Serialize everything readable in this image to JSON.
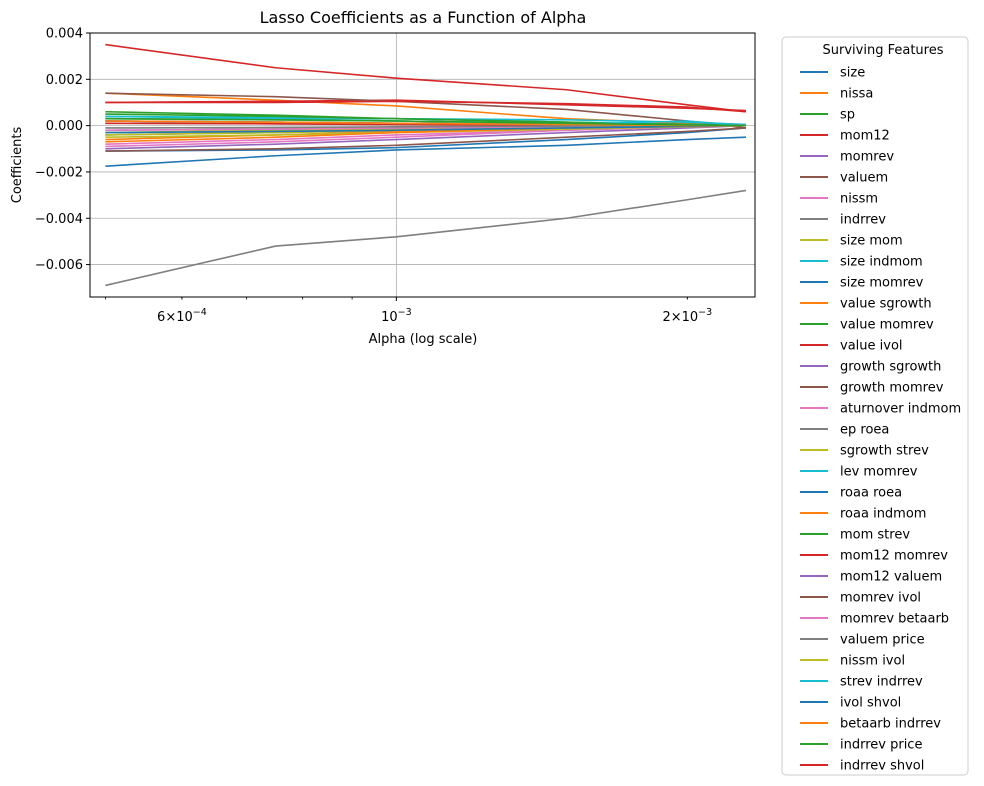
{
  "chart_data": {
    "type": "line",
    "title": "Lasso Coefficients as a Function of Alpha",
    "xlabel": "Alpha (log scale)",
    "ylabel": "Coefficients",
    "xscale": "log",
    "xlim": [
      0.000482,
      0.00235
    ],
    "ylim": [
      -0.0074,
      0.004
    ],
    "x": [
      0.0005,
      0.00075,
      0.001,
      0.0015,
      0.002,
      0.0023
    ],
    "y_ticks": [
      {
        "value": 0.004,
        "label": "0.004"
      },
      {
        "value": 0.002,
        "label": "0.002"
      },
      {
        "value": 0.0,
        "label": "0.000"
      },
      {
        "value": -0.002,
        "label": "−0.002"
      },
      {
        "value": -0.004,
        "label": "−0.004"
      },
      {
        "value": -0.006,
        "label": "−0.006"
      }
    ],
    "x_ticks": [
      {
        "value": 0.0006,
        "base": "6×10",
        "exp": "−4",
        "major": false
      },
      {
        "value": 0.001,
        "base": "10",
        "exp": "−3",
        "major": true
      },
      {
        "value": 0.002,
        "base": "2×10",
        "exp": "−3",
        "major": false
      }
    ],
    "grid": true,
    "legend": {
      "title": "Surviving Features",
      "placement": "outside-right"
    },
    "series": [
      {
        "name": "size",
        "color": "#1f77b4",
        "values": [
          -0.0011,
          -0.00105,
          -0.00095,
          -0.0006,
          -0.0003,
          -0.0001
        ]
      },
      {
        "name": "nissa",
        "color": "#ff7f0e",
        "values": [
          0.0014,
          0.0011,
          0.00085,
          0.0003,
          0.0001,
          0.0
        ]
      },
      {
        "name": "sp",
        "color": "#2ca02c",
        "values": [
          0.0006,
          0.00045,
          0.0003,
          0.00015,
          5e-05,
          0.0
        ]
      },
      {
        "name": "mom12",
        "color": "#d62728",
        "values": [
          0.001,
          0.00105,
          0.0011,
          0.0009,
          0.00075,
          0.00065
        ]
      },
      {
        "name": "momrev",
        "color": "#9467bd",
        "values": [
          -0.001,
          -0.0008,
          -0.0006,
          -0.0003,
          -0.0001,
          0.0
        ]
      },
      {
        "name": "valuem",
        "color": "#8c564b",
        "values": [
          0.0014,
          0.00125,
          0.00105,
          0.0007,
          0.0002,
          -0.0001
        ]
      },
      {
        "name": "nissm",
        "color": "#e377c2",
        "values": [
          -0.0008,
          -0.0006,
          -0.0004,
          -0.0002,
          -5e-05,
          0.0
        ]
      },
      {
        "name": "indrrev",
        "color": "#7f7f7f",
        "values": [
          -0.0069,
          -0.0052,
          -0.0048,
          -0.004,
          -0.0032,
          -0.0028
        ]
      },
      {
        "name": "size mom",
        "color": "#bcbd22",
        "values": [
          -0.0003,
          -0.0002,
          -0.00015,
          -5e-05,
          0.0,
          0.0
        ]
      },
      {
        "name": "size indmom",
        "color": "#17becf",
        "values": [
          0.0004,
          0.00035,
          0.0003,
          0.00025,
          0.00015,
          5e-05
        ]
      },
      {
        "name": "size momrev",
        "color": "#1f77b4",
        "values": [
          -0.00175,
          -0.0013,
          -0.00105,
          -0.00085,
          -0.0006,
          -0.0005
        ]
      },
      {
        "name": "value sgrowth",
        "color": "#ff7f0e",
        "values": [
          -0.0006,
          -0.0004,
          -0.00025,
          -0.0001,
          0.0,
          0.0
        ]
      },
      {
        "name": "value momrev",
        "color": "#2ca02c",
        "values": [
          0.0005,
          0.0004,
          0.0003,
          0.00015,
          5e-05,
          0.0
        ]
      },
      {
        "name": "value ivol",
        "color": "#d62728",
        "values": [
          0.0035,
          0.0025,
          0.00205,
          0.00155,
          0.0009,
          0.0006
        ]
      },
      {
        "name": "growth sgrowth",
        "color": "#9467bd",
        "values": [
          -0.0002,
          -0.00015,
          -0.0001,
          -5e-05,
          0.0,
          0.0
        ]
      },
      {
        "name": "growth momrev",
        "color": "#8c564b",
        "values": [
          -0.0011,
          -0.001,
          -0.00085,
          -0.0005,
          -0.00025,
          -0.0001
        ]
      },
      {
        "name": "aturnover indmom",
        "color": "#e377c2",
        "values": [
          -0.0009,
          -0.0007,
          -0.0005,
          -0.0002,
          -5e-05,
          0.0
        ]
      },
      {
        "name": "ep roea",
        "color": "#7f7f7f",
        "values": [
          0.0001,
          8e-05,
          6e-05,
          3e-05,
          1e-05,
          0.0
        ]
      },
      {
        "name": "sgrowth strev",
        "color": "#bcbd22",
        "values": [
          -0.0005,
          -0.0004,
          -0.0003,
          -0.00015,
          -5e-05,
          0.0
        ]
      },
      {
        "name": "lev momrev",
        "color": "#17becf",
        "values": [
          0.0002,
          0.00015,
          0.0001,
          5e-05,
          0.0002,
          0.0
        ]
      },
      {
        "name": "roaa roea",
        "color": "#1f77b4",
        "values": [
          -0.0004,
          -0.0003,
          -0.0002,
          -0.0001,
          -3e-05,
          0.0
        ]
      },
      {
        "name": "roaa indmom",
        "color": "#ff7f0e",
        "values": [
          -0.0007,
          -0.0005,
          -0.0003,
          -0.0001,
          -2e-05,
          0.0
        ]
      },
      {
        "name": "mom strev",
        "color": "#2ca02c",
        "values": [
          0.0003,
          0.00025,
          0.0002,
          0.0001,
          3e-05,
          0.0
        ]
      },
      {
        "name": "mom12 momrev",
        "color": "#d62728",
        "values": [
          0.0001,
          8e-05,
          5e-05,
          2e-05,
          0.0,
          0.0
        ]
      },
      {
        "name": "mom12 valuem",
        "color": "#9467bd",
        "values": [
          0.0002,
          0.00015,
          0.0001,
          5e-05,
          0.0,
          0.0
        ]
      },
      {
        "name": "momrev ivol",
        "color": "#8c564b",
        "values": [
          0.0002,
          0.00015,
          0.0001,
          5e-05,
          0.0,
          0.0
        ]
      },
      {
        "name": "momrev betaarb",
        "color": "#e377c2",
        "values": [
          -0.0002,
          -0.00015,
          -0.0001,
          -5e-05,
          0.0,
          0.0
        ]
      },
      {
        "name": "valuem price",
        "color": "#7f7f7f",
        "values": [
          -0.0001,
          -8e-05,
          -5e-05,
          -2e-05,
          0.0,
          0.0
        ]
      },
      {
        "name": "nissm ivol",
        "color": "#bcbd22",
        "values": [
          -0.0004,
          -0.0003,
          -0.0002,
          -0.0001,
          -3e-05,
          0.0
        ]
      },
      {
        "name": "strev indrrev",
        "color": "#17becf",
        "values": [
          0.0004,
          0.0003,
          0.0002,
          0.0001,
          3e-05,
          0.0
        ]
      },
      {
        "name": "ivol shvol",
        "color": "#1f77b4",
        "values": [
          -0.0003,
          -0.00025,
          -0.0002,
          -0.0001,
          -3e-05,
          0.0
        ]
      },
      {
        "name": "betaarb indrrev",
        "color": "#ff7f0e",
        "values": [
          0.0002,
          0.00015,
          0.0001,
          5e-05,
          0.0,
          0.0
        ]
      },
      {
        "name": "indrrev price",
        "color": "#2ca02c",
        "values": [
          0.0003,
          0.00025,
          0.0002,
          0.0001,
          3e-05,
          0.0
        ]
      },
      {
        "name": "indrrev shvol",
        "color": "#d62728",
        "values": [
          0.001,
          0.001,
          0.00105,
          0.00095,
          0.0008,
          0.0006
        ]
      }
    ]
  }
}
